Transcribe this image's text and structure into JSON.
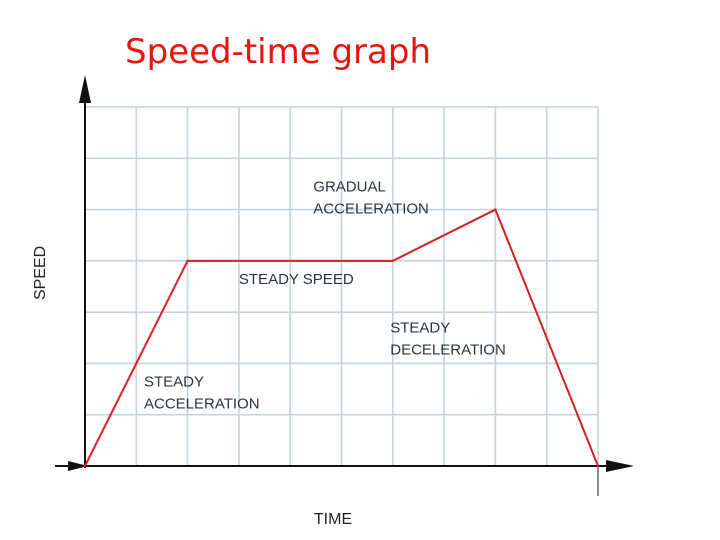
{
  "title": "Speed-time graph",
  "chart_data": {
    "type": "line",
    "title": "Speed-time graph",
    "xlabel": "TIME",
    "ylabel": "SPEED",
    "xlim": [
      0,
      10
    ],
    "ylim": [
      0,
      7
    ],
    "grid": true,
    "x_ticks_labeled": false,
    "y_ticks_labeled": false,
    "series": [
      {
        "x": [
          0,
          2,
          6,
          8,
          10
        ],
        "y": [
          0,
          4,
          4,
          5,
          0
        ]
      }
    ],
    "annotations": [
      {
        "lines": [
          "STEADY",
          "ACCELERATION"
        ],
        "x": 1.15,
        "y": 1.55
      },
      {
        "lines": [
          "STEADY SPEED"
        ],
        "x": 3.0,
        "y": 3.55
      },
      {
        "lines": [
          "GRADUAL",
          "ACCELERATION"
        ],
        "x": 4.45,
        "y": 5.35
      },
      {
        "lines": [
          "STEADY",
          "DECELERATION"
        ],
        "x": 5.95,
        "y": 2.6
      }
    ]
  },
  "colors": {
    "title": "#e8140e",
    "line": "#d42020",
    "grid": "#c6d3df",
    "axis": "#111111"
  }
}
